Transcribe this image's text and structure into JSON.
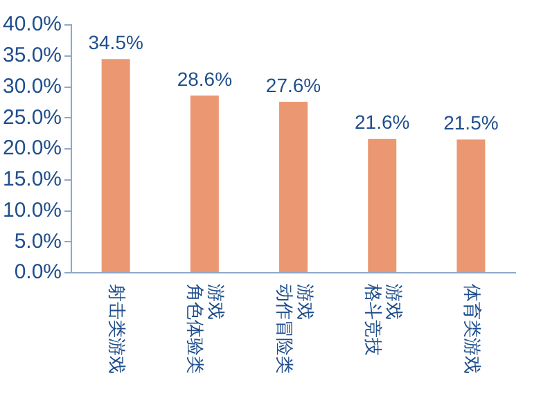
{
  "chart_data": {
    "type": "bar",
    "categories": [
      "射击类游戏",
      "角色体验类游戏",
      "动作冒险类游戏",
      "格斗竞技游戏",
      "体育类游戏"
    ],
    "values": [
      34.5,
      28.6,
      27.6,
      21.6,
      21.5
    ],
    "color": "#eb9872",
    "ylim": [
      0,
      40
    ],
    "yticks": [
      {
        "value": 0,
        "label": "0.0%"
      },
      {
        "value": 5,
        "label": "5.0%"
      },
      {
        "value": 10,
        "label": "10.0%"
      },
      {
        "value": 15,
        "label": "15.0%"
      },
      {
        "value": 20,
        "label": "20.0%"
      },
      {
        "value": 25,
        "label": "25.0%"
      },
      {
        "value": 30,
        "label": "30.0%"
      },
      {
        "value": 35,
        "label": "35.0%"
      },
      {
        "value": 40,
        "label": "40.0%"
      }
    ],
    "value_labels": [
      "34.5%",
      "28.6%",
      "27.6%",
      "21.6%",
      "21.5%"
    ],
    "grid": false,
    "legend": false
  }
}
